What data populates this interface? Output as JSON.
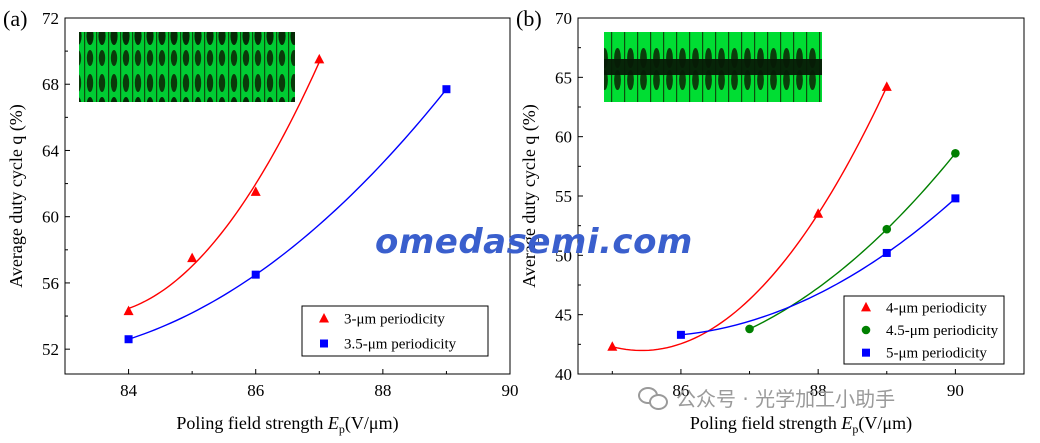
{
  "watermark": {
    "text": "omedasemi.com",
    "color": "#3a5fcd"
  },
  "wechat": {
    "text": "公众号 · 光学加工小助手",
    "icon": "wechat-icon"
  },
  "chart_data": [
    {
      "type": "scatter",
      "panel_label": "(a)",
      "xlabel_main": "Poling field strength ",
      "xlabel_symbol": "E",
      "xlabel_sub": "p",
      "xlabel_unit": "(V/μm)",
      "ylabel": "Average duty cycle q (%)",
      "xlim": [
        83,
        90
      ],
      "ylim": [
        50.5,
        72
      ],
      "x_ticks": [
        84,
        86,
        88,
        90
      ],
      "y_ticks": [
        52,
        56,
        60,
        64,
        68,
        72
      ],
      "inset": "micrograph",
      "legend_position": "lower-right",
      "series": [
        {
          "name": "3-μm periodicity",
          "marker": "triangle",
          "color": "#ff0000",
          "x": [
            84,
            85,
            86,
            87
          ],
          "y": [
            54.3,
            57.5,
            61.5,
            69.5
          ]
        },
        {
          "name": "3.5-μm periodicity",
          "marker": "square",
          "color": "#0000ff",
          "x": [
            84,
            86,
            89
          ],
          "y": [
            52.6,
            56.5,
            67.7
          ]
        }
      ]
    },
    {
      "type": "scatter",
      "panel_label": "(b)",
      "xlabel_main": "Poling field strength ",
      "xlabel_symbol": "E",
      "xlabel_sub": "p",
      "xlabel_unit": "(V/μm)",
      "ylabel": "Average duty cycle q (%)",
      "xlim": [
        84.5,
        91
      ],
      "ylim": [
        40,
        70
      ],
      "x_ticks": [
        86,
        88,
        90
      ],
      "y_ticks": [
        40,
        45,
        50,
        55,
        60,
        65,
        70
      ],
      "inset": "micrograph",
      "legend_position": "lower-right",
      "series": [
        {
          "name": "4-μm periodicity",
          "marker": "triangle",
          "color": "#ff0000",
          "x": [
            85,
            88,
            89
          ],
          "y": [
            42.3,
            53.5,
            64.2
          ]
        },
        {
          "name": "4.5-μm periodicity",
          "marker": "circle",
          "color": "#008000",
          "x": [
            87,
            89,
            90
          ],
          "y": [
            43.8,
            52.2,
            58.6
          ]
        },
        {
          "name": "5-μm periodicity",
          "marker": "square",
          "color": "#0000ff",
          "x": [
            86,
            89,
            90
          ],
          "y": [
            43.3,
            50.2,
            54.8
          ]
        }
      ]
    }
  ]
}
